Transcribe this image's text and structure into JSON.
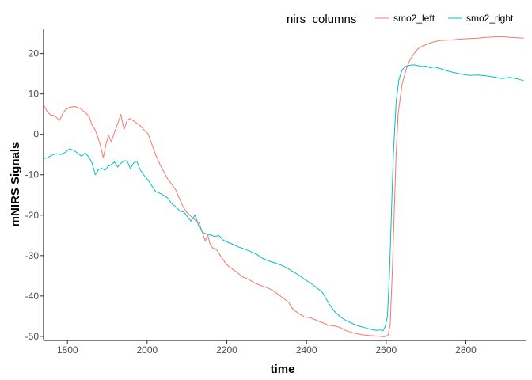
{
  "chart_data": {
    "type": "line",
    "xlabel": "time",
    "ylabel": "mNIRS Signals",
    "xlim": [
      1740,
      2950
    ],
    "ylim": [
      -51,
      26
    ],
    "x_ticks": [
      1800,
      2000,
      2200,
      2400,
      2600,
      2800
    ],
    "y_ticks": [
      -50,
      -40,
      -30,
      -20,
      -10,
      0,
      10,
      20
    ],
    "grid": false,
    "legend": {
      "title": "nirs_columns",
      "position": "top-right"
    },
    "colors": {
      "smo2_left": "#F8766D",
      "smo2_right": "#00BFC4"
    },
    "series": [
      {
        "name": "smo2_left",
        "color": "#F8766D",
        "x": [
          1742,
          1750,
          1758,
          1768,
          1780,
          1788,
          1795,
          1805,
          1818,
          1832,
          1845,
          1855,
          1862,
          1868,
          1875,
          1882,
          1890,
          1897,
          1903,
          1910,
          1918,
          1926,
          1934,
          1942,
          1950,
          1957,
          1965,
          1973,
          1982,
          1992,
          2002,
          2012,
          2022,
          2032,
          2042,
          2052,
          2062,
          2072,
          2082,
          2090,
          2100,
          2110,
          2120,
          2130,
          2138,
          2146,
          2152,
          2158,
          2165,
          2175,
          2185,
          2195,
          2205,
          2215,
          2225,
          2240,
          2255,
          2270,
          2285,
          2300,
          2315,
          2330,
          2345,
          2355,
          2365,
          2380,
          2395,
          2410,
          2425,
          2440,
          2455,
          2470,
          2485,
          2500,
          2520,
          2540,
          2560,
          2575,
          2585,
          2595,
          2600,
          2605,
          2610,
          2615,
          2620,
          2625,
          2630,
          2640,
          2650,
          2660,
          2670,
          2680,
          2690,
          2700,
          2710,
          2720,
          2735,
          2750,
          2770,
          2790,
          2810,
          2830,
          2850,
          2870,
          2890,
          2910,
          2930,
          2945
        ],
        "y": [
          7,
          5.5,
          4.8,
          4.6,
          3.4,
          5.2,
          6.1,
          6.7,
          6.9,
          6.4,
          5.4,
          4.3,
          2.2,
          1.4,
          -0.3,
          -2.5,
          -5.8,
          -2.4,
          -0.2,
          -1.8,
          0.5,
          2.6,
          4.9,
          1.2,
          3.5,
          3.9,
          3.4,
          2.8,
          2.2,
          1.1,
          0.2,
          -2.5,
          -5.2,
          -7.4,
          -9.3,
          -11.1,
          -12.4,
          -13.8,
          -16.1,
          -17.9,
          -19.4,
          -20.3,
          -21.2,
          -21.8,
          -24.1,
          -26.4,
          -24.8,
          -27.3,
          -28.1,
          -28.6,
          -30.2,
          -31.6,
          -32.7,
          -33.4,
          -34.1,
          -35.3,
          -35.9,
          -36.8,
          -37.4,
          -37.9,
          -38.6,
          -39.7,
          -40.8,
          -41.6,
          -43.2,
          -44.3,
          -45.2,
          -45.4,
          -46.0,
          -46.6,
          -47.2,
          -47.4,
          -47.8,
          -48.6,
          -49.2,
          -49.6,
          -49.8,
          -49.9,
          -50.0,
          -50.1,
          -49.9,
          -49.6,
          -47.0,
          -35.0,
          -20.0,
          -5.0,
          5.0,
          12.5,
          16.0,
          18.5,
          20.0,
          21.2,
          21.8,
          22.2,
          22.6,
          22.9,
          23.2,
          23.3,
          23.4,
          23.6,
          23.7,
          23.8,
          24.0,
          24.1,
          24.2,
          24.0,
          23.9,
          23.8
        ]
      },
      {
        "name": "smo2_right",
        "color": "#00BFC4",
        "x": [
          1742,
          1750,
          1760,
          1772,
          1785,
          1795,
          1805,
          1815,
          1825,
          1835,
          1845,
          1855,
          1862,
          1870,
          1878,
          1886,
          1894,
          1902,
          1910,
          1918,
          1926,
          1934,
          1942,
          1950,
          1958,
          1966,
          1974,
          1982,
          1992,
          2002,
          2012,
          2022,
          2032,
          2042,
          2052,
          2062,
          2072,
          2082,
          2092,
          2100,
          2110,
          2120,
          2130,
          2140,
          2150,
          2160,
          2170,
          2180,
          2190,
          2200,
          2215,
          2230,
          2245,
          2260,
          2275,
          2290,
          2305,
          2320,
          2335,
          2350,
          2365,
          2380,
          2395,
          2410,
          2425,
          2440,
          2455,
          2470,
          2485,
          2500,
          2515,
          2530,
          2545,
          2560,
          2575,
          2585,
          2592,
          2598,
          2603,
          2608,
          2613,
          2618,
          2625,
          2632,
          2640,
          2650,
          2660,
          2670,
          2680,
          2690,
          2700,
          2710,
          2720,
          2735,
          2750,
          2770,
          2790,
          2810,
          2830,
          2850,
          2870,
          2890,
          2910,
          2930,
          2945
        ],
        "y": [
          -6,
          -5.8,
          -5.2,
          -4.8,
          -5.0,
          -4.4,
          -3.6,
          -3.9,
          -4.6,
          -5.4,
          -4.6,
          -5.8,
          -7.2,
          -10.0,
          -8.7,
          -8.4,
          -8.9,
          -7.9,
          -7.5,
          -6.8,
          -8.1,
          -7.2,
          -6.5,
          -6.6,
          -8.5,
          -7.1,
          -6.6,
          -8.7,
          -10.1,
          -11.3,
          -12.8,
          -14.2,
          -14.6,
          -15.1,
          -15.8,
          -17.2,
          -17.9,
          -19.0,
          -19.2,
          -20.2,
          -21.5,
          -20.0,
          -22.8,
          -24.3,
          -24.7,
          -24.9,
          -25.3,
          -25.0,
          -26.1,
          -26.6,
          -27.2,
          -27.9,
          -28.4,
          -29.0,
          -29.7,
          -30.7,
          -31.3,
          -31.8,
          -32.3,
          -33.0,
          -33.9,
          -34.8,
          -35.9,
          -36.8,
          -37.9,
          -39.1,
          -41.7,
          -43.8,
          -45.2,
          -46.1,
          -46.8,
          -47.4,
          -47.8,
          -48.2,
          -48.5,
          -48.4,
          -48.6,
          -47.5,
          -45.0,
          -35.0,
          -20.0,
          -5.0,
          8.0,
          13.5,
          16.0,
          16.9,
          17.1,
          17.2,
          17.0,
          16.8,
          16.9,
          16.5,
          16.7,
          16.3,
          15.8,
          15.3,
          14.9,
          14.6,
          14.7,
          14.5,
          14.2,
          13.8,
          14.1,
          13.7,
          13.3
        ]
      }
    ]
  }
}
